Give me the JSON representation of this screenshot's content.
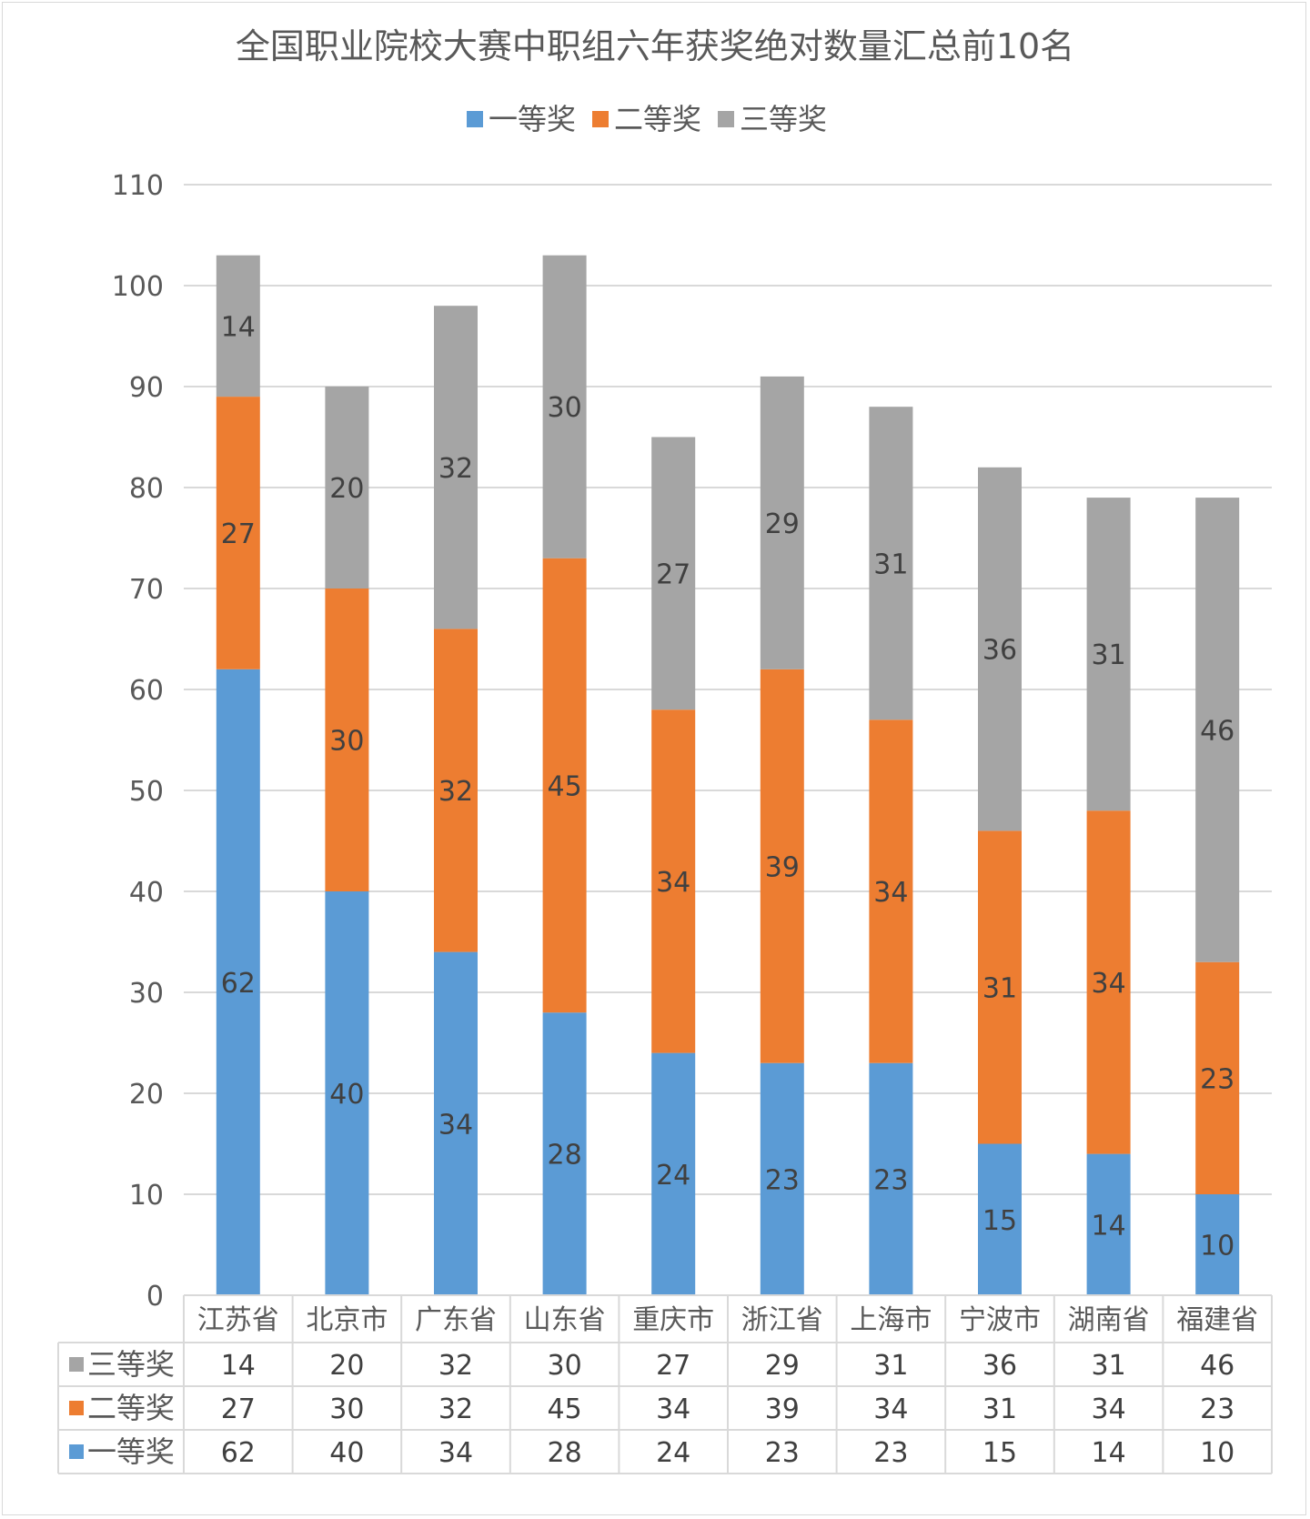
{
  "chart_data": {
    "type": "bar",
    "stacked": true,
    "title": "全国职业院校大赛中职组六年获奖绝对数量汇总前10名",
    "categories": [
      "江苏省",
      "北京市",
      "广东省",
      "山东省",
      "重庆市",
      "浙江省",
      "上海市",
      "宁波市",
      "湖南省",
      "福建省"
    ],
    "series": [
      {
        "name": "一等奖",
        "color": "#5b9bd5",
        "values": [
          62,
          40,
          34,
          28,
          24,
          23,
          23,
          15,
          14,
          10
        ]
      },
      {
        "name": "二等奖",
        "color": "#ed7d31",
        "values": [
          27,
          30,
          32,
          45,
          34,
          39,
          34,
          31,
          34,
          23
        ]
      },
      {
        "name": "三等奖",
        "color": "#a5a5a5",
        "values": [
          14,
          20,
          32,
          30,
          27,
          29,
          31,
          36,
          31,
          46
        ]
      }
    ],
    "ylim": [
      0,
      110
    ],
    "yticks": [
      0,
      10,
      20,
      30,
      40,
      50,
      60,
      70,
      80,
      90,
      100,
      110
    ],
    "grid": true,
    "legend_position": "top",
    "data_labels": true,
    "data_table": true,
    "data_table_row_order": [
      "三等奖",
      "二等奖",
      "一等奖"
    ]
  }
}
